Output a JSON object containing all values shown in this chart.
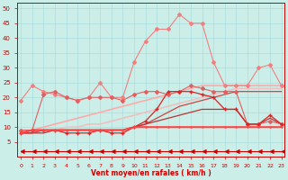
{
  "x": [
    0,
    1,
    2,
    3,
    4,
    5,
    6,
    7,
    8,
    9,
    10,
    11,
    12,
    13,
    14,
    15,
    16,
    17,
    18,
    19,
    20,
    21,
    22,
    23
  ],
  "series": [
    {
      "name": "rafales_top",
      "color": "#f08080",
      "marker": "D",
      "markersize": 2.0,
      "linewidth": 0.8,
      "zorder": 3,
      "values": [
        19,
        24,
        22,
        21,
        20,
        19,
        20,
        25,
        20,
        20,
        32,
        39,
        43,
        43,
        48,
        45,
        45,
        32,
        24,
        24,
        24,
        30,
        31,
        24
      ]
    },
    {
      "name": "trend_light1",
      "color": "#ffaaaa",
      "marker": null,
      "markersize": 0,
      "linewidth": 1.2,
      "zorder": 2,
      "values": [
        8,
        9,
        10,
        11,
        12,
        13,
        14,
        15,
        16,
        17,
        18,
        19,
        20,
        21,
        22,
        23,
        24,
        24,
        24,
        24,
        24,
        24,
        24,
        24
      ]
    },
    {
      "name": "trend_light2",
      "color": "#f0c0c0",
      "marker": null,
      "markersize": 0,
      "linewidth": 1.2,
      "zorder": 2,
      "values": [
        8,
        8,
        9,
        9,
        10,
        10,
        11,
        11,
        12,
        13,
        14,
        15,
        16,
        17,
        18,
        19,
        20,
        21,
        22,
        23,
        23,
        23,
        23,
        23
      ]
    },
    {
      "name": "middle_jagged",
      "color": "#e06060",
      "marker": "D",
      "markersize": 2.0,
      "linewidth": 0.8,
      "zorder": 3,
      "values": [
        9,
        9,
        21,
        22,
        20,
        19,
        20,
        20,
        20,
        19,
        21,
        22,
        22,
        21,
        22,
        24,
        23,
        22,
        22,
        22,
        11,
        11,
        12,
        11
      ]
    },
    {
      "name": "trend_diagonal1",
      "color": "#cc4444",
      "marker": null,
      "markersize": 0,
      "linewidth": 0.9,
      "zorder": 2,
      "values": [
        8,
        8,
        9,
        9,
        9,
        9,
        9,
        9,
        9,
        9,
        10,
        11,
        13,
        15,
        17,
        18,
        19,
        20,
        21,
        22,
        22,
        22,
        22,
        22
      ]
    },
    {
      "name": "trend_diagonal2",
      "color": "#bb3333",
      "marker": null,
      "markersize": 0,
      "linewidth": 0.9,
      "zorder": 2,
      "values": [
        8,
        8,
        8,
        9,
        9,
        9,
        9,
        9,
        9,
        9,
        10,
        11,
        12,
        13,
        14,
        15,
        16,
        16,
        16,
        16,
        11,
        11,
        13,
        11
      ]
    },
    {
      "name": "rising_red",
      "color": "#dd2222",
      "marker": "+",
      "markersize": 2.5,
      "linewidth": 0.9,
      "zorder": 3,
      "values": [
        8,
        9,
        9,
        9,
        8,
        8,
        8,
        9,
        8,
        8,
        10,
        12,
        16,
        22,
        22,
        22,
        21,
        20,
        16,
        16,
        11,
        11,
        14,
        11
      ]
    },
    {
      "name": "flat_bright",
      "color": "#ff4444",
      "marker": "+",
      "markersize": 2.0,
      "linewidth": 1.5,
      "zorder": 4,
      "values": [
        8,
        9,
        9,
        9,
        9,
        9,
        9,
        9,
        9,
        9,
        10,
        10,
        10,
        10,
        10,
        10,
        10,
        10,
        10,
        10,
        10,
        10,
        10,
        10
      ]
    },
    {
      "name": "bottom_arrows",
      "color": "#cc0000",
      "marker": 4,
      "markersize": 3.5,
      "linewidth": 0.8,
      "zorder": 2,
      "values": [
        2,
        2,
        2,
        2,
        2,
        2,
        2,
        2,
        2,
        2,
        2,
        2,
        2,
        2,
        2,
        2,
        2,
        2,
        2,
        2,
        2,
        2,
        2,
        2
      ]
    }
  ],
  "xlim": [
    -0.3,
    23.3
  ],
  "ylim": [
    0,
    52
  ],
  "yticks": [
    5,
    10,
    15,
    20,
    25,
    30,
    35,
    40,
    45,
    50
  ],
  "xticks": [
    0,
    1,
    2,
    3,
    4,
    5,
    6,
    7,
    8,
    9,
    10,
    11,
    12,
    13,
    14,
    15,
    16,
    17,
    18,
    19,
    20,
    21,
    22,
    23
  ],
  "xlabel": "Vent moyen/en rafales ( km/h )",
  "bg_color": "#cceee8",
  "grid_color": "#aadddd",
  "axis_color": "#cc0000",
  "label_color": "#cc0000",
  "tick_color": "#cc0000"
}
